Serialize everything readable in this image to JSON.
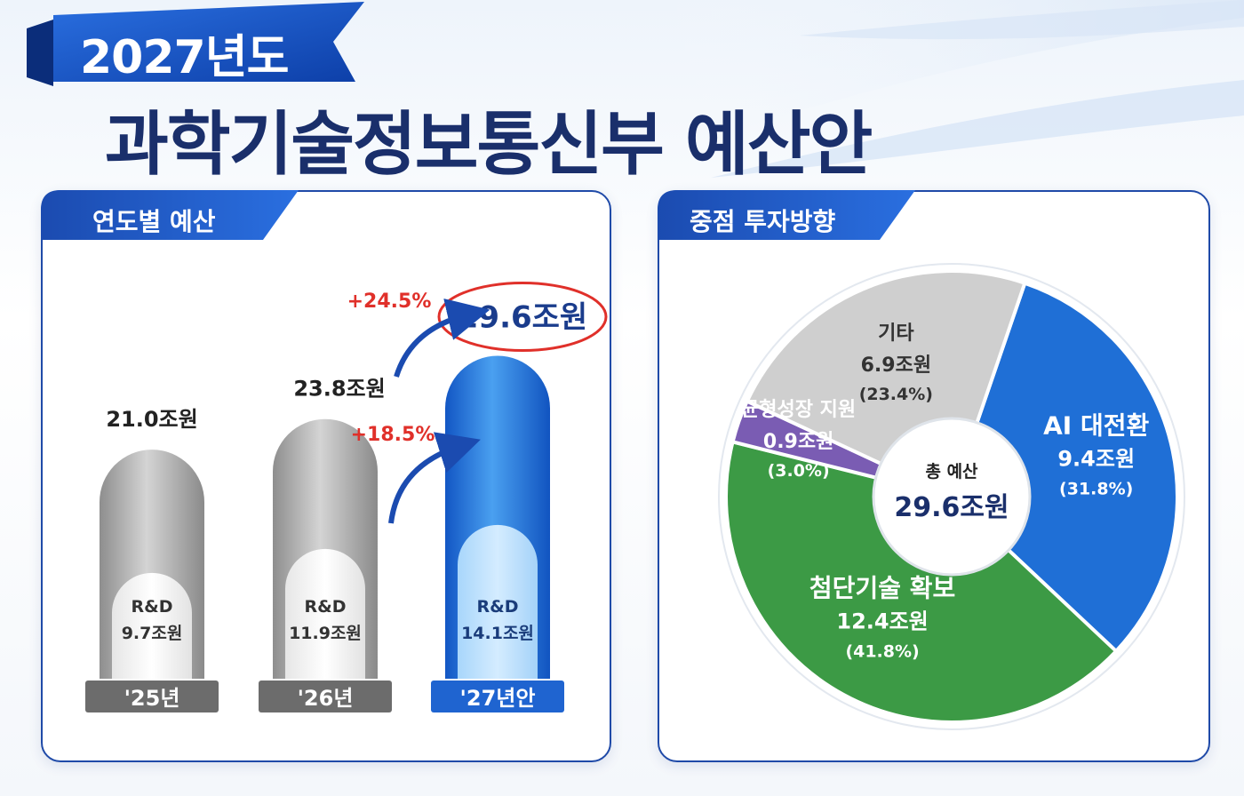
{
  "header": {
    "year": "2027년도",
    "title": "과학기술정보통신부 예산안"
  },
  "left_panel": {
    "title": "연도별 예산"
  },
  "right_panel": {
    "title": "중점 투자방향"
  },
  "colors": {
    "navy": "#1a2f6b",
    "blue": "#1f6fd6",
    "gray": "#9a9a9a",
    "red": "#e0302a",
    "green": "#3c9a45",
    "purple": "#7a5cb3",
    "light_gray": "#cfcfcf"
  },
  "chart_data": [
    {
      "type": "bar",
      "categories": [
        "'25년",
        "'26년",
        "'27년안"
      ],
      "series": [
        {
          "name": "",
          "values": [
            21.0,
            23.8,
            29.6
          ],
          "labels": [
            "21.0조원",
            "23.8조원",
            "29.6조원"
          ]
        },
        {
          "name": "R&D",
          "values": [
            9.7,
            11.9,
            14.1
          ],
          "labels": [
            "9.7조원",
            "11.9조원",
            "14.1조원"
          ]
        }
      ],
      "inner_label": "R&D",
      "growth_annotations": [
        "+24.5%",
        "+18.5%"
      ]
    },
    {
      "type": "pie",
      "center": {
        "label": "총 예산",
        "value": "29.6조원"
      },
      "slices": [
        {
          "name": "AI 대전환",
          "value": 9.4,
          "value_label": "9.4조원",
          "percent_label": "(31.8%)",
          "color": "#1f6fd6"
        },
        {
          "name": "첨단기술 확보",
          "value": 12.4,
          "value_label": "12.4조원",
          "percent_label": "(41.8%)",
          "color": "#3c9a45"
        },
        {
          "name": "균형성장 지원",
          "value": 0.9,
          "value_label": "0.9조원",
          "percent_label": "(3.0%)",
          "color": "#7a5cb3"
        },
        {
          "name": "기타",
          "value": 6.9,
          "value_label": "6.9조원",
          "percent_label": "(23.4%)",
          "color": "#cfcfcf"
        }
      ]
    }
  ]
}
